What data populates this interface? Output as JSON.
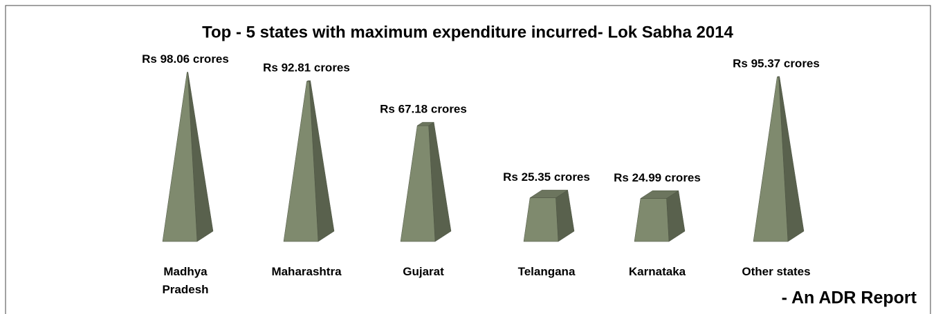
{
  "chart_data": {
    "type": "pyramid",
    "title": "Top - 5 states with maximum expenditure incurred- Lok Sabha 2014",
    "categories": [
      "Madhya Pradesh",
      "Maharashtra",
      "Gujarat",
      "Telangana",
      "Karnataka",
      "Other states"
    ],
    "values": [
      98.06,
      92.81,
      67.18,
      25.35,
      24.99,
      95.37
    ],
    "value_labels": [
      "Rs 98.06 crores",
      "Rs 92.81 crores",
      "Rs 67.18 crores",
      "Rs 25.35 crores",
      "Rs 24.99 crores",
      "Rs 95.37 crores"
    ],
    "color": "#7f8a6e",
    "annotation": "- An ADR Report"
  }
}
